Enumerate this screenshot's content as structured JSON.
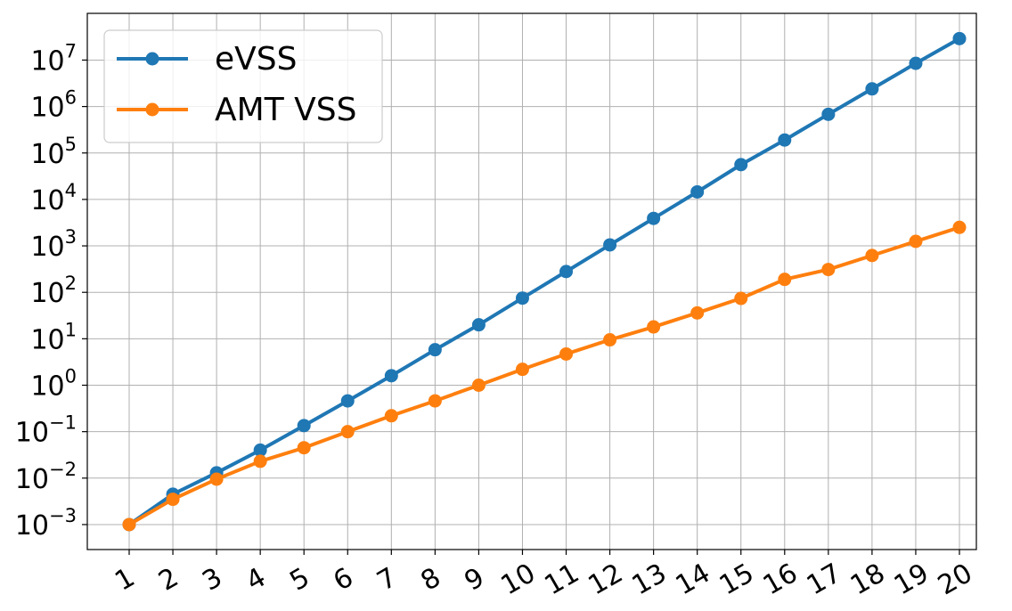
{
  "chart_data": {
    "type": "line",
    "title": "",
    "xlabel": "",
    "ylabel": "",
    "y_scale": "log",
    "grid": true,
    "legend_position": "top-left",
    "x": [
      1,
      2,
      3,
      4,
      5,
      6,
      7,
      8,
      9,
      10,
      11,
      12,
      13,
      14,
      15,
      16,
      17,
      18,
      19,
      20
    ],
    "x_tick_labels": [
      "1",
      "2",
      "3",
      "4",
      "5",
      "6",
      "7",
      "8",
      "9",
      "10",
      "11",
      "12",
      "13",
      "14",
      "15",
      "16",
      "17",
      "18",
      "19",
      "20"
    ],
    "y_tick_values": [
      0.001,
      0.01,
      0.1,
      1,
      10,
      100,
      1000,
      10000,
      100000,
      1000000,
      10000000
    ],
    "y_tick_labels": [
      {
        "base": "10",
        "exp": "−3"
      },
      {
        "base": "10",
        "exp": "−2"
      },
      {
        "base": "10",
        "exp": "−1"
      },
      {
        "base": "10",
        "exp": "0"
      },
      {
        "base": "10",
        "exp": "1"
      },
      {
        "base": "10",
        "exp": "2"
      },
      {
        "base": "10",
        "exp": "3"
      },
      {
        "base": "10",
        "exp": "4"
      },
      {
        "base": "10",
        "exp": "5"
      },
      {
        "base": "10",
        "exp": "6"
      },
      {
        "base": "10",
        "exp": "7"
      }
    ],
    "ylim": [
      0.00031,
      100000000
    ],
    "series": [
      {
        "name": "eVSS",
        "color": "#1f77b4",
        "values": [
          0.001,
          0.0045,
          0.013,
          0.04,
          0.135,
          0.46,
          1.6,
          5.8,
          20,
          75,
          280,
          1050,
          3900,
          14500,
          56000,
          190000,
          680000,
          2400000,
          8500000,
          29000000
        ]
      },
      {
        "name": "AMT VSS",
        "color": "#ff7f0e",
        "values": [
          0.001,
          0.0035,
          0.0095,
          0.023,
          0.045,
          0.1,
          0.22,
          0.46,
          1.0,
          2.2,
          4.7,
          9.5,
          18,
          36,
          74,
          190,
          310,
          620,
          1250,
          2500
        ]
      }
    ]
  }
}
